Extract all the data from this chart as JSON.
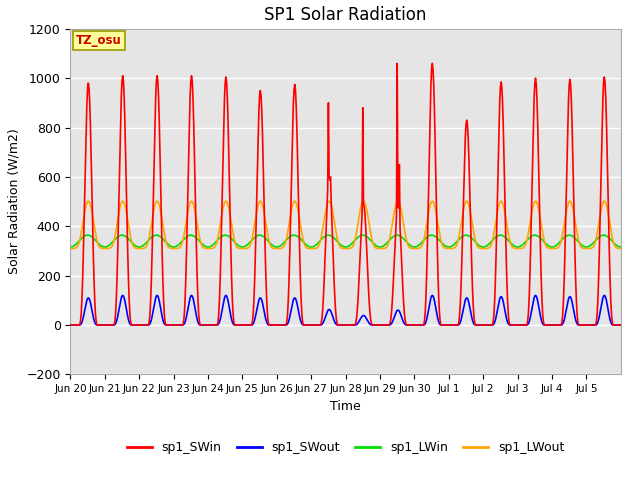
{
  "title": "SP1 Solar Radiation",
  "xlabel": "Time",
  "ylabel": "Solar Radiation (W/m2)",
  "ylim": [
    -200,
    1200
  ],
  "y_ticks": [
    -200,
    0,
    200,
    400,
    600,
    800,
    1000,
    1200
  ],
  "timezone_label": "TZ_osu",
  "background_color": "#ffffff",
  "plot_bg_color": "#e5e5e5",
  "grid_color": "#ffffff",
  "colors": {
    "sp1_SWin": "#ff0000",
    "sp1_SWout": "#0000ff",
    "sp1_LWin": "#00dd00",
    "sp1_LWout": "#ffa500"
  },
  "legend_labels": [
    "sp1_SWin",
    "sp1_SWout",
    "sp1_LWin",
    "sp1_LWout"
  ],
  "x_tick_labels": [
    "Jun 20",
    "Jun 21",
    "Jun 22",
    "Jun 23",
    "Jun 24",
    "Jun 25",
    "Jun 26",
    "Jun 27",
    "Jun 28",
    "Jun 29",
    "Jun 30",
    "Jul 1",
    "Jul 2",
    "Jul 3",
    "Jul 4",
    "Jul 5"
  ],
  "num_days": 16,
  "SWin_peaks": [
    980,
    1010,
    1010,
    1010,
    1005,
    950,
    975,
    1000,
    890,
    880,
    1060,
    830,
    985,
    1000,
    995,
    1005
  ],
  "SWout_peaks": [
    110,
    120,
    120,
    120,
    120,
    110,
    110,
    105,
    70,
    110,
    120,
    110,
    115,
    120,
    115,
    120
  ],
  "LWin_base": 340,
  "LWin_amp": 25,
  "LWout_base": 420,
  "LWout_amp": 200,
  "figsize": [
    6.4,
    4.8
  ],
  "dpi": 100
}
